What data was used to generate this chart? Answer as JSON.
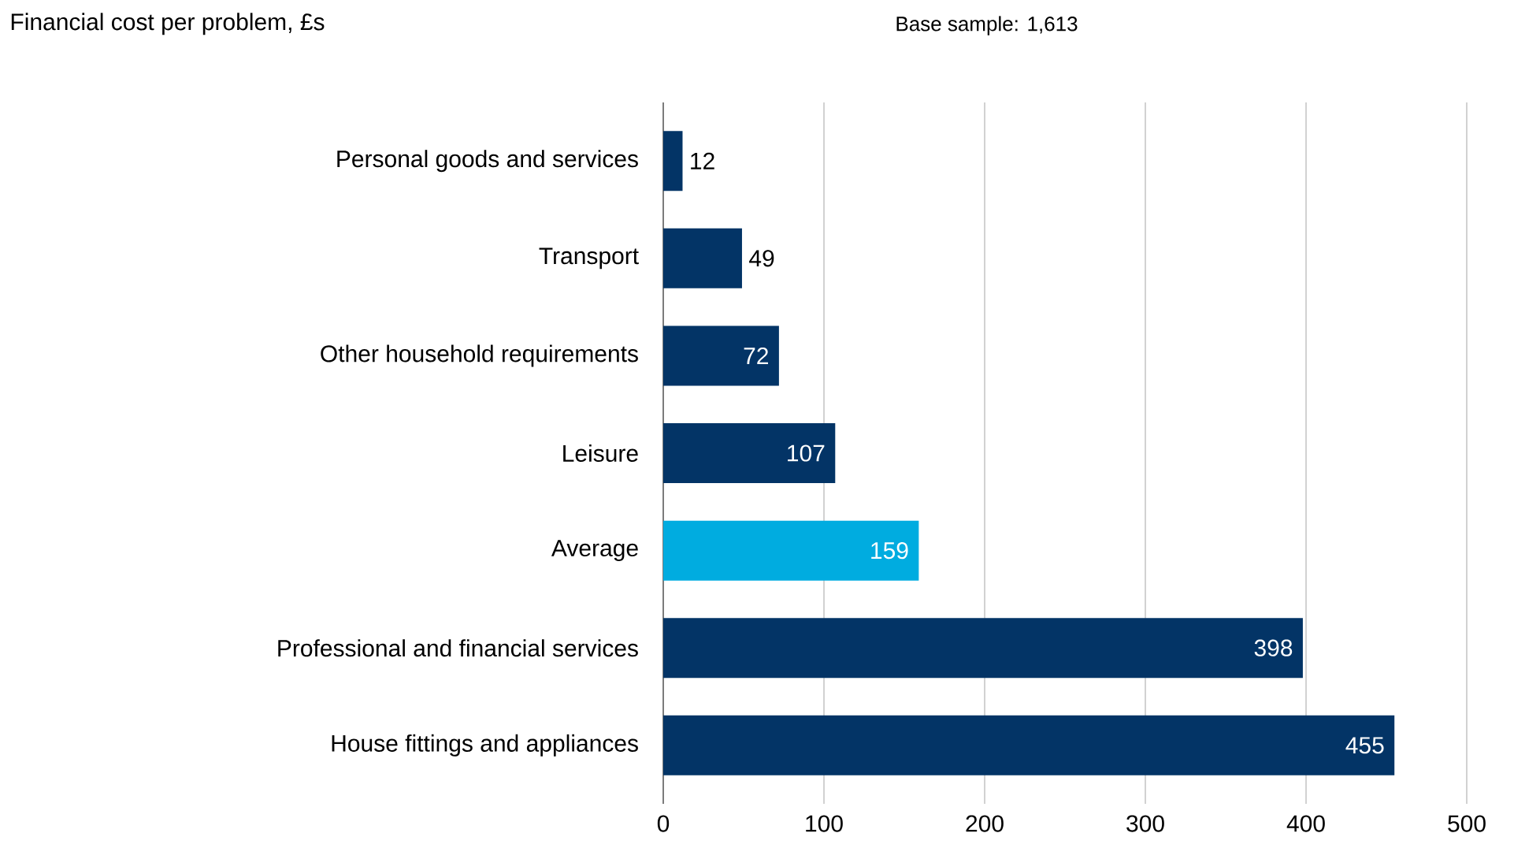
{
  "chart_data": {
    "type": "bar",
    "orientation": "horizontal",
    "title": "Financial cost per problem, £s",
    "annotations": [
      "Base sample: 1,613"
    ],
    "categories": [
      "Personal goods and services",
      "Transport",
      "Other household requirements",
      "Leisure",
      "Average",
      "Professional and financial services",
      "House fittings and appliances"
    ],
    "values": [
      12,
      49,
      72,
      107,
      159,
      398,
      455
    ],
    "colors": [
      "#033466",
      "#033466",
      "#033466",
      "#033466",
      "#00ace0",
      "#033466",
      "#033466"
    ],
    "xlim": [
      0,
      500
    ],
    "xticks": [
      0,
      100,
      200,
      300,
      400,
      500
    ],
    "grid": "x",
    "data_labels": true
  }
}
